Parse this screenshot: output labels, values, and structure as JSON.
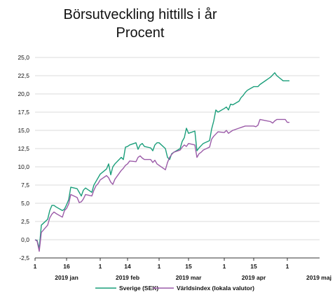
{
  "chart_data": {
    "type": "line",
    "title": "Börsutveckling hittills i år",
    "subtitle": "Procent",
    "xlabel": "",
    "ylabel": "",
    "ylim": [
      -2.5,
      25
    ],
    "yticks": [
      "-2,5",
      "0,0",
      "2,5",
      "5,0",
      "7,5",
      "10,0",
      "12,5",
      "15,0",
      "17,5",
      "20,0",
      "22,5",
      "25,0"
    ],
    "x_day_ticks": [
      "1",
      "16",
      "1",
      "14",
      "1",
      "15",
      "1",
      "15",
      "1"
    ],
    "x_month_labels": [
      "2019 jan",
      "2019 feb",
      "2019 mar",
      "2019 apr",
      "2019 maj"
    ],
    "grid": true,
    "legend_position": "bottom",
    "x": [
      "2019-01-01",
      "2019-01-02",
      "2019-01-03",
      "2019-01-04",
      "2019-01-07",
      "2019-01-08",
      "2019-01-09",
      "2019-01-10",
      "2019-01-11",
      "2019-01-14",
      "2019-01-15",
      "2019-01-16",
      "2019-01-17",
      "2019-01-18",
      "2019-01-21",
      "2019-01-22",
      "2019-01-23",
      "2019-01-24",
      "2019-01-25",
      "2019-01-28",
      "2019-01-29",
      "2019-01-30",
      "2019-01-31",
      "2019-02-01",
      "2019-02-04",
      "2019-02-05",
      "2019-02-06",
      "2019-02-07",
      "2019-02-08",
      "2019-02-11",
      "2019-02-12",
      "2019-02-13",
      "2019-02-14",
      "2019-02-15",
      "2019-02-18",
      "2019-02-19",
      "2019-02-20",
      "2019-02-21",
      "2019-02-22",
      "2019-02-25",
      "2019-02-26",
      "2019-02-27",
      "2019-02-28",
      "2019-03-01",
      "2019-03-04",
      "2019-03-05",
      "2019-03-06",
      "2019-03-07",
      "2019-03-08",
      "2019-03-11",
      "2019-03-12",
      "2019-03-13",
      "2019-03-14",
      "2019-03-15",
      "2019-03-18",
      "2019-03-19",
      "2019-03-20",
      "2019-03-21",
      "2019-03-22",
      "2019-03-25",
      "2019-03-26",
      "2019-03-27",
      "2019-03-28",
      "2019-03-29",
      "2019-04-01",
      "2019-04-02",
      "2019-04-03",
      "2019-04-04",
      "2019-04-05",
      "2019-04-08",
      "2019-04-09",
      "2019-04-10",
      "2019-04-11",
      "2019-04-12",
      "2019-04-15",
      "2019-04-16",
      "2019-04-17",
      "2019-04-18",
      "2019-04-23",
      "2019-04-24",
      "2019-04-25",
      "2019-04-26",
      "2019-04-29",
      "2019-04-30",
      "2019-05-01",
      "2019-05-02"
    ],
    "series": [
      {
        "name": "Sverige (SEK)",
        "color": "#1a9e7a",
        "values": [
          0.0,
          -0.1,
          -1.2,
          2.0,
          2.8,
          4.0,
          4.7,
          4.7,
          4.5,
          4.0,
          4.2,
          4.8,
          5.5,
          7.2,
          7.0,
          6.5,
          6.0,
          6.8,
          7.1,
          6.5,
          7.5,
          8.0,
          8.5,
          9.0,
          9.7,
          10.4,
          8.9,
          10.0,
          10.4,
          11.3,
          11.0,
          12.7,
          12.8,
          13.0,
          13.3,
          12.4,
          13.0,
          13.2,
          12.8,
          12.6,
          12.2,
          13.0,
          13.3,
          13.3,
          12.5,
          11.3,
          11.0,
          11.8,
          12.0,
          12.5,
          13.5,
          14.0,
          15.3,
          14.6,
          14.9,
          12.2,
          12.6,
          12.9,
          13.2,
          13.6,
          15.2,
          16.3,
          17.8,
          17.5,
          18.0,
          18.2,
          17.8,
          18.6,
          18.5,
          19.0,
          19.5,
          19.8,
          20.2,
          20.5,
          21.0,
          21.0,
          21.0,
          21.3,
          22.3,
          22.6,
          22.9,
          22.5,
          21.8,
          21.8,
          21.8,
          21.8
        ]
      },
      {
        "name": "Världsindex (lokala valutor)",
        "color": "#9b5ba8",
        "values": [
          0.0,
          -0.2,
          -1.6,
          1.0,
          2.0,
          3.0,
          3.5,
          3.8,
          3.6,
          3.1,
          4.0,
          4.3,
          4.9,
          6.2,
          5.8,
          5.1,
          5.2,
          5.6,
          6.2,
          6.0,
          6.8,
          7.4,
          7.7,
          8.2,
          8.8,
          8.5,
          7.9,
          7.6,
          8.3,
          9.5,
          9.8,
          10.2,
          10.4,
          10.8,
          10.7,
          11.3,
          11.5,
          11.2,
          11.0,
          11.0,
          10.6,
          10.9,
          10.4,
          10.2,
          9.6,
          10.6,
          11.3,
          11.7,
          12.0,
          12.3,
          12.7,
          13.0,
          12.8,
          13.2,
          13.0,
          11.3,
          11.8,
          12.0,
          12.3,
          12.7,
          13.8,
          14.2,
          14.5,
          14.8,
          14.7,
          15.0,
          14.6,
          14.8,
          15.0,
          15.3,
          15.4,
          15.5,
          15.6,
          15.6,
          15.6,
          15.5,
          15.7,
          16.5,
          16.2,
          16.0,
          16.3,
          16.5,
          16.5,
          16.5,
          16.1,
          16.1
        ]
      }
    ]
  }
}
